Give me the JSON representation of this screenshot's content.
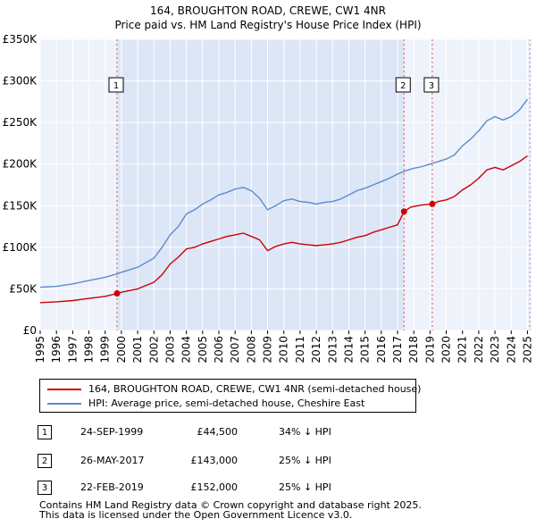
{
  "chart_data": {
    "type": "line",
    "title": "164, BROUGHTON ROAD, CREWE, CW1 4NR",
    "subtitle": "Price paid vs. HM Land Registry's House Price Index (HPI)",
    "xlim": [
      1995.0,
      2025.25
    ],
    "ylim": [
      0,
      350000
    ],
    "y_ticks": [
      {
        "value": 0,
        "label": "£0"
      },
      {
        "value": 50000,
        "label": "£50K"
      },
      {
        "value": 100000,
        "label": "£100K"
      },
      {
        "value": 150000,
        "label": "£150K"
      },
      {
        "value": 200000,
        "label": "£200K"
      },
      {
        "value": 250000,
        "label": "£250K"
      },
      {
        "value": 300000,
        "label": "£300K"
      },
      {
        "value": 350000,
        "label": "£350K"
      }
    ],
    "x_ticks": [
      "1995",
      "1996",
      "1997",
      "1998",
      "1999",
      "2000",
      "2001",
      "2002",
      "2003",
      "2004",
      "2005",
      "2006",
      "2007",
      "2008",
      "2009",
      "2010",
      "2011",
      "2012",
      "2013",
      "2014",
      "2015",
      "2016",
      "2017",
      "2018",
      "2019",
      "2020",
      "2021",
      "2022",
      "2023",
      "2024",
      "2025"
    ],
    "grid": true,
    "shaded_period": [
      1999.73,
      2017.4
    ],
    "series": [
      {
        "name": "164, BROUGHTON ROAD, CREWE, CW1 4NR (semi-detached house)",
        "color": "#cc0000",
        "points": [
          [
            1995,
            33500
          ],
          [
            1996,
            34500
          ],
          [
            1997,
            36000
          ],
          [
            1998,
            38500
          ],
          [
            1999,
            41000
          ],
          [
            1999.73,
            44500
          ],
          [
            2000,
            46000
          ],
          [
            2001,
            50000
          ],
          [
            2002,
            58000
          ],
          [
            2002.5,
            67000
          ],
          [
            2003,
            80000
          ],
          [
            2003.5,
            88000
          ],
          [
            2004,
            98000
          ],
          [
            2004.5,
            100000
          ],
          [
            2005,
            104000
          ],
          [
            2005.5,
            107000
          ],
          [
            2006,
            110000
          ],
          [
            2006.5,
            113000
          ],
          [
            2007,
            115000
          ],
          [
            2007.5,
            117000
          ],
          [
            2008,
            113000
          ],
          [
            2008.5,
            109000
          ],
          [
            2009,
            96000
          ],
          [
            2009.5,
            101000
          ],
          [
            2010,
            104000
          ],
          [
            2010.5,
            106000
          ],
          [
            2011,
            104000
          ],
          [
            2011.5,
            103000
          ],
          [
            2012,
            102000
          ],
          [
            2012.5,
            103000
          ],
          [
            2013,
            104000
          ],
          [
            2013.5,
            106000
          ],
          [
            2014,
            109000
          ],
          [
            2014.5,
            112000
          ],
          [
            2015,
            114000
          ],
          [
            2015.5,
            118000
          ],
          [
            2016,
            121000
          ],
          [
            2016.5,
            124000
          ],
          [
            2017,
            127000
          ],
          [
            2017.4,
            143000
          ],
          [
            2017.8,
            148000
          ],
          [
            2018,
            149000
          ],
          [
            2018.5,
            151000
          ],
          [
            2019.14,
            152000
          ],
          [
            2019.5,
            155000
          ],
          [
            2020,
            157000
          ],
          [
            2020.5,
            161000
          ],
          [
            2021,
            169000
          ],
          [
            2021.5,
            175000
          ],
          [
            2022,
            183000
          ],
          [
            2022.5,
            193000
          ],
          [
            2023,
            196000
          ],
          [
            2023.5,
            193000
          ],
          [
            2024,
            198000
          ],
          [
            2024.5,
            203000
          ],
          [
            2025,
            210000
          ]
        ]
      },
      {
        "name": "HPI: Average price, semi-detached house, Cheshire East",
        "color": "#5b8ccc",
        "points": [
          [
            1995,
            52000
          ],
          [
            1996,
            53000
          ],
          [
            1997,
            56000
          ],
          [
            1998,
            60000
          ],
          [
            1999,
            64000
          ],
          [
            1999.73,
            68000
          ],
          [
            2000,
            70000
          ],
          [
            2001,
            76000
          ],
          [
            2002,
            87000
          ],
          [
            2002.5,
            100000
          ],
          [
            2003,
            115000
          ],
          [
            2003.5,
            125000
          ],
          [
            2004,
            140000
          ],
          [
            2004.5,
            145000
          ],
          [
            2005,
            152000
          ],
          [
            2005.5,
            157000
          ],
          [
            2006,
            163000
          ],
          [
            2006.5,
            166000
          ],
          [
            2007,
            170000
          ],
          [
            2007.5,
            172000
          ],
          [
            2008,
            168000
          ],
          [
            2008.5,
            159000
          ],
          [
            2009,
            145000
          ],
          [
            2009.5,
            150000
          ],
          [
            2010,
            156000
          ],
          [
            2010.5,
            158000
          ],
          [
            2011,
            155000
          ],
          [
            2011.5,
            154000
          ],
          [
            2012,
            152000
          ],
          [
            2012.5,
            154000
          ],
          [
            2013,
            155000
          ],
          [
            2013.5,
            158000
          ],
          [
            2014,
            163000
          ],
          [
            2014.5,
            168000
          ],
          [
            2015,
            171000
          ],
          [
            2015.5,
            175000
          ],
          [
            2016,
            179000
          ],
          [
            2016.5,
            183000
          ],
          [
            2017,
            188000
          ],
          [
            2017.5,
            192000
          ],
          [
            2018,
            195000
          ],
          [
            2018.5,
            197000
          ],
          [
            2019,
            200000
          ],
          [
            2019.5,
            203000
          ],
          [
            2020,
            206000
          ],
          [
            2020.5,
            211000
          ],
          [
            2021,
            222000
          ],
          [
            2021.5,
            230000
          ],
          [
            2022,
            240000
          ],
          [
            2022.5,
            252000
          ],
          [
            2023,
            257000
          ],
          [
            2023.5,
            253000
          ],
          [
            2024,
            257000
          ],
          [
            2024.5,
            265000
          ],
          [
            2025,
            278000
          ]
        ]
      }
    ],
    "sales": [
      {
        "label": "1",
        "date": "24-SEP-1999",
        "x": 1999.73,
        "price_value": 44500,
        "price": "£44,500",
        "hpi": "34% ↓ HPI"
      },
      {
        "label": "2",
        "date": "26-MAY-2017",
        "x": 2017.4,
        "price_value": 143000,
        "price": "£143,000",
        "hpi": "25% ↓ HPI"
      },
      {
        "label": "3",
        "date": "22-FEB-2019",
        "x": 2019.14,
        "price_value": 152000,
        "price": "£152,000",
        "hpi": "25% ↓ HPI"
      }
    ],
    "legend_position": "below-chart"
  },
  "footer": {
    "line1": "Contains HM Land Registry data © Crown copyright and database right 2025.",
    "line2": "This data is licensed under the Open Government Licence v3.0."
  }
}
